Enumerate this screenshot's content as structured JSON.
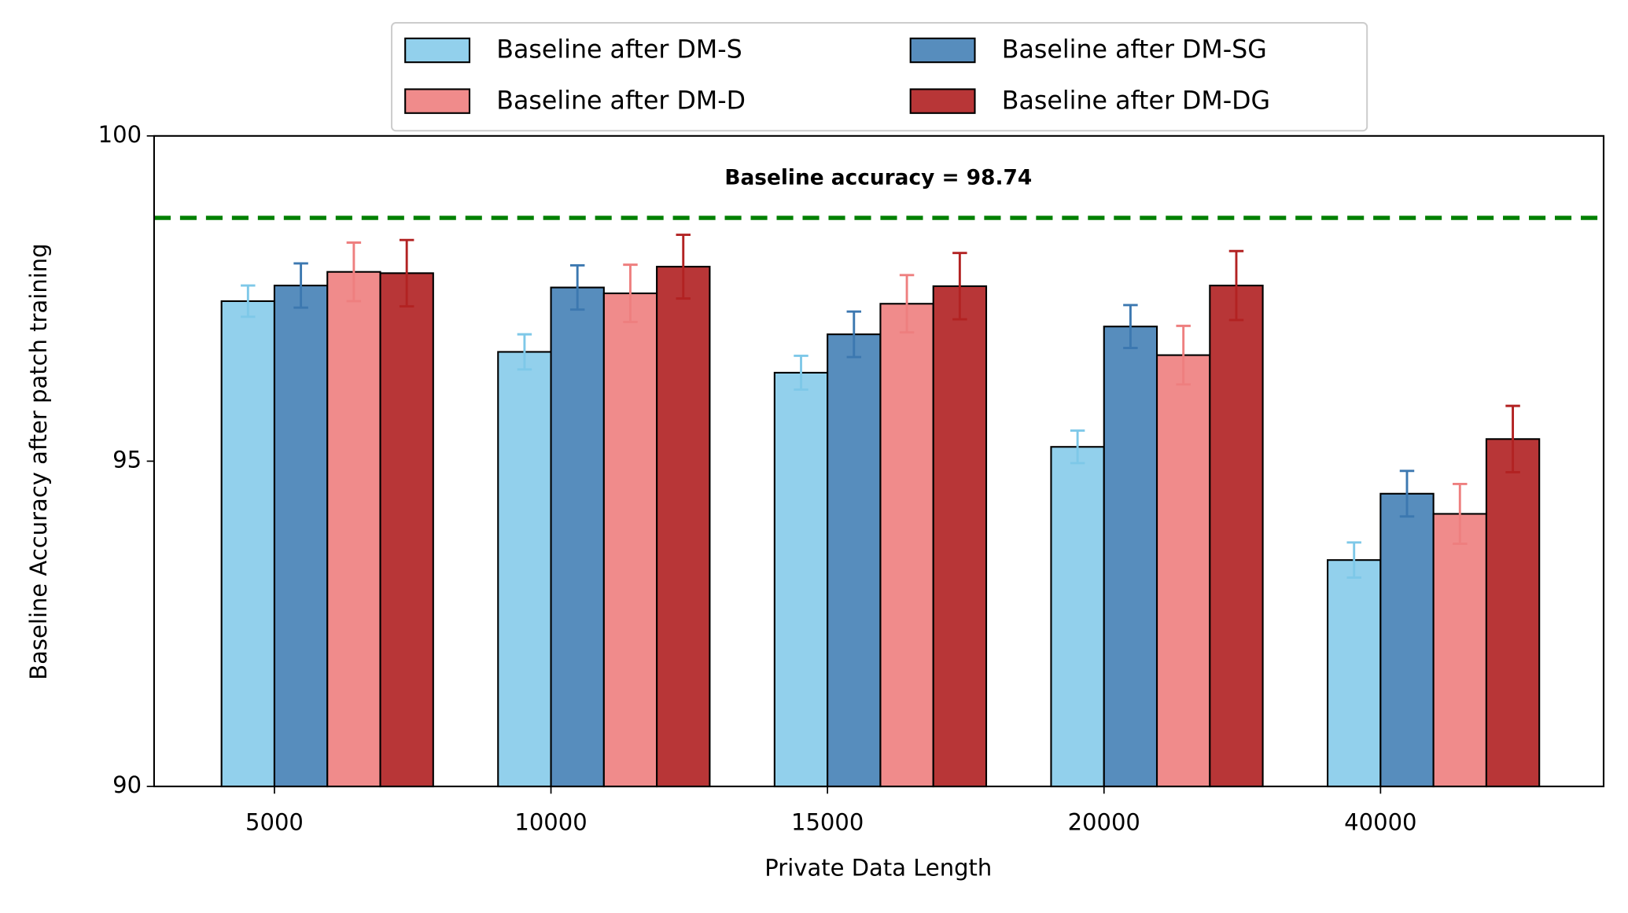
{
  "chart_data": {
    "type": "bar",
    "xlabel": "Private Data Length",
    "ylabel": "Baseline Accuracy after patch training",
    "categories": [
      "5000",
      "10000",
      "15000",
      "20000",
      "40000"
    ],
    "series": [
      {
        "name": "Baseline after DM-S",
        "color": "#92d0ec",
        "error_color": "#7ec8e8",
        "values": [
          97.46,
          96.68,
          96.36,
          95.22,
          93.48
        ],
        "errors": [
          0.24,
          0.27,
          0.26,
          0.25,
          0.27
        ]
      },
      {
        "name": "Baseline after DM-SG",
        "color": "#578dbd",
        "error_color": "#3c78b0",
        "values": [
          97.7,
          97.67,
          96.95,
          97.07,
          94.5
        ],
        "errors": [
          0.34,
          0.34,
          0.35,
          0.33,
          0.35
        ]
      },
      {
        "name": "Baseline after DM-D",
        "color": "#f08b8b",
        "error_color": "#ee7f7f",
        "values": [
          97.91,
          97.58,
          97.42,
          96.63,
          94.19
        ],
        "errors": [
          0.45,
          0.44,
          0.44,
          0.45,
          0.46
        ]
      },
      {
        "name": "Baseline after DM-DG",
        "color": "#b83637",
        "error_color": "#b22222",
        "values": [
          97.89,
          97.99,
          97.69,
          97.7,
          95.34
        ],
        "errors": [
          0.51,
          0.49,
          0.51,
          0.53,
          0.51
        ]
      }
    ],
    "reference_line": {
      "value": 98.74,
      "color": "#008000",
      "label": "Baseline accuracy = 98.74"
    },
    "ylim": [
      90,
      100
    ],
    "yticks": [
      90,
      95,
      100
    ],
    "legend": "top",
    "legend_columns": 2
  }
}
